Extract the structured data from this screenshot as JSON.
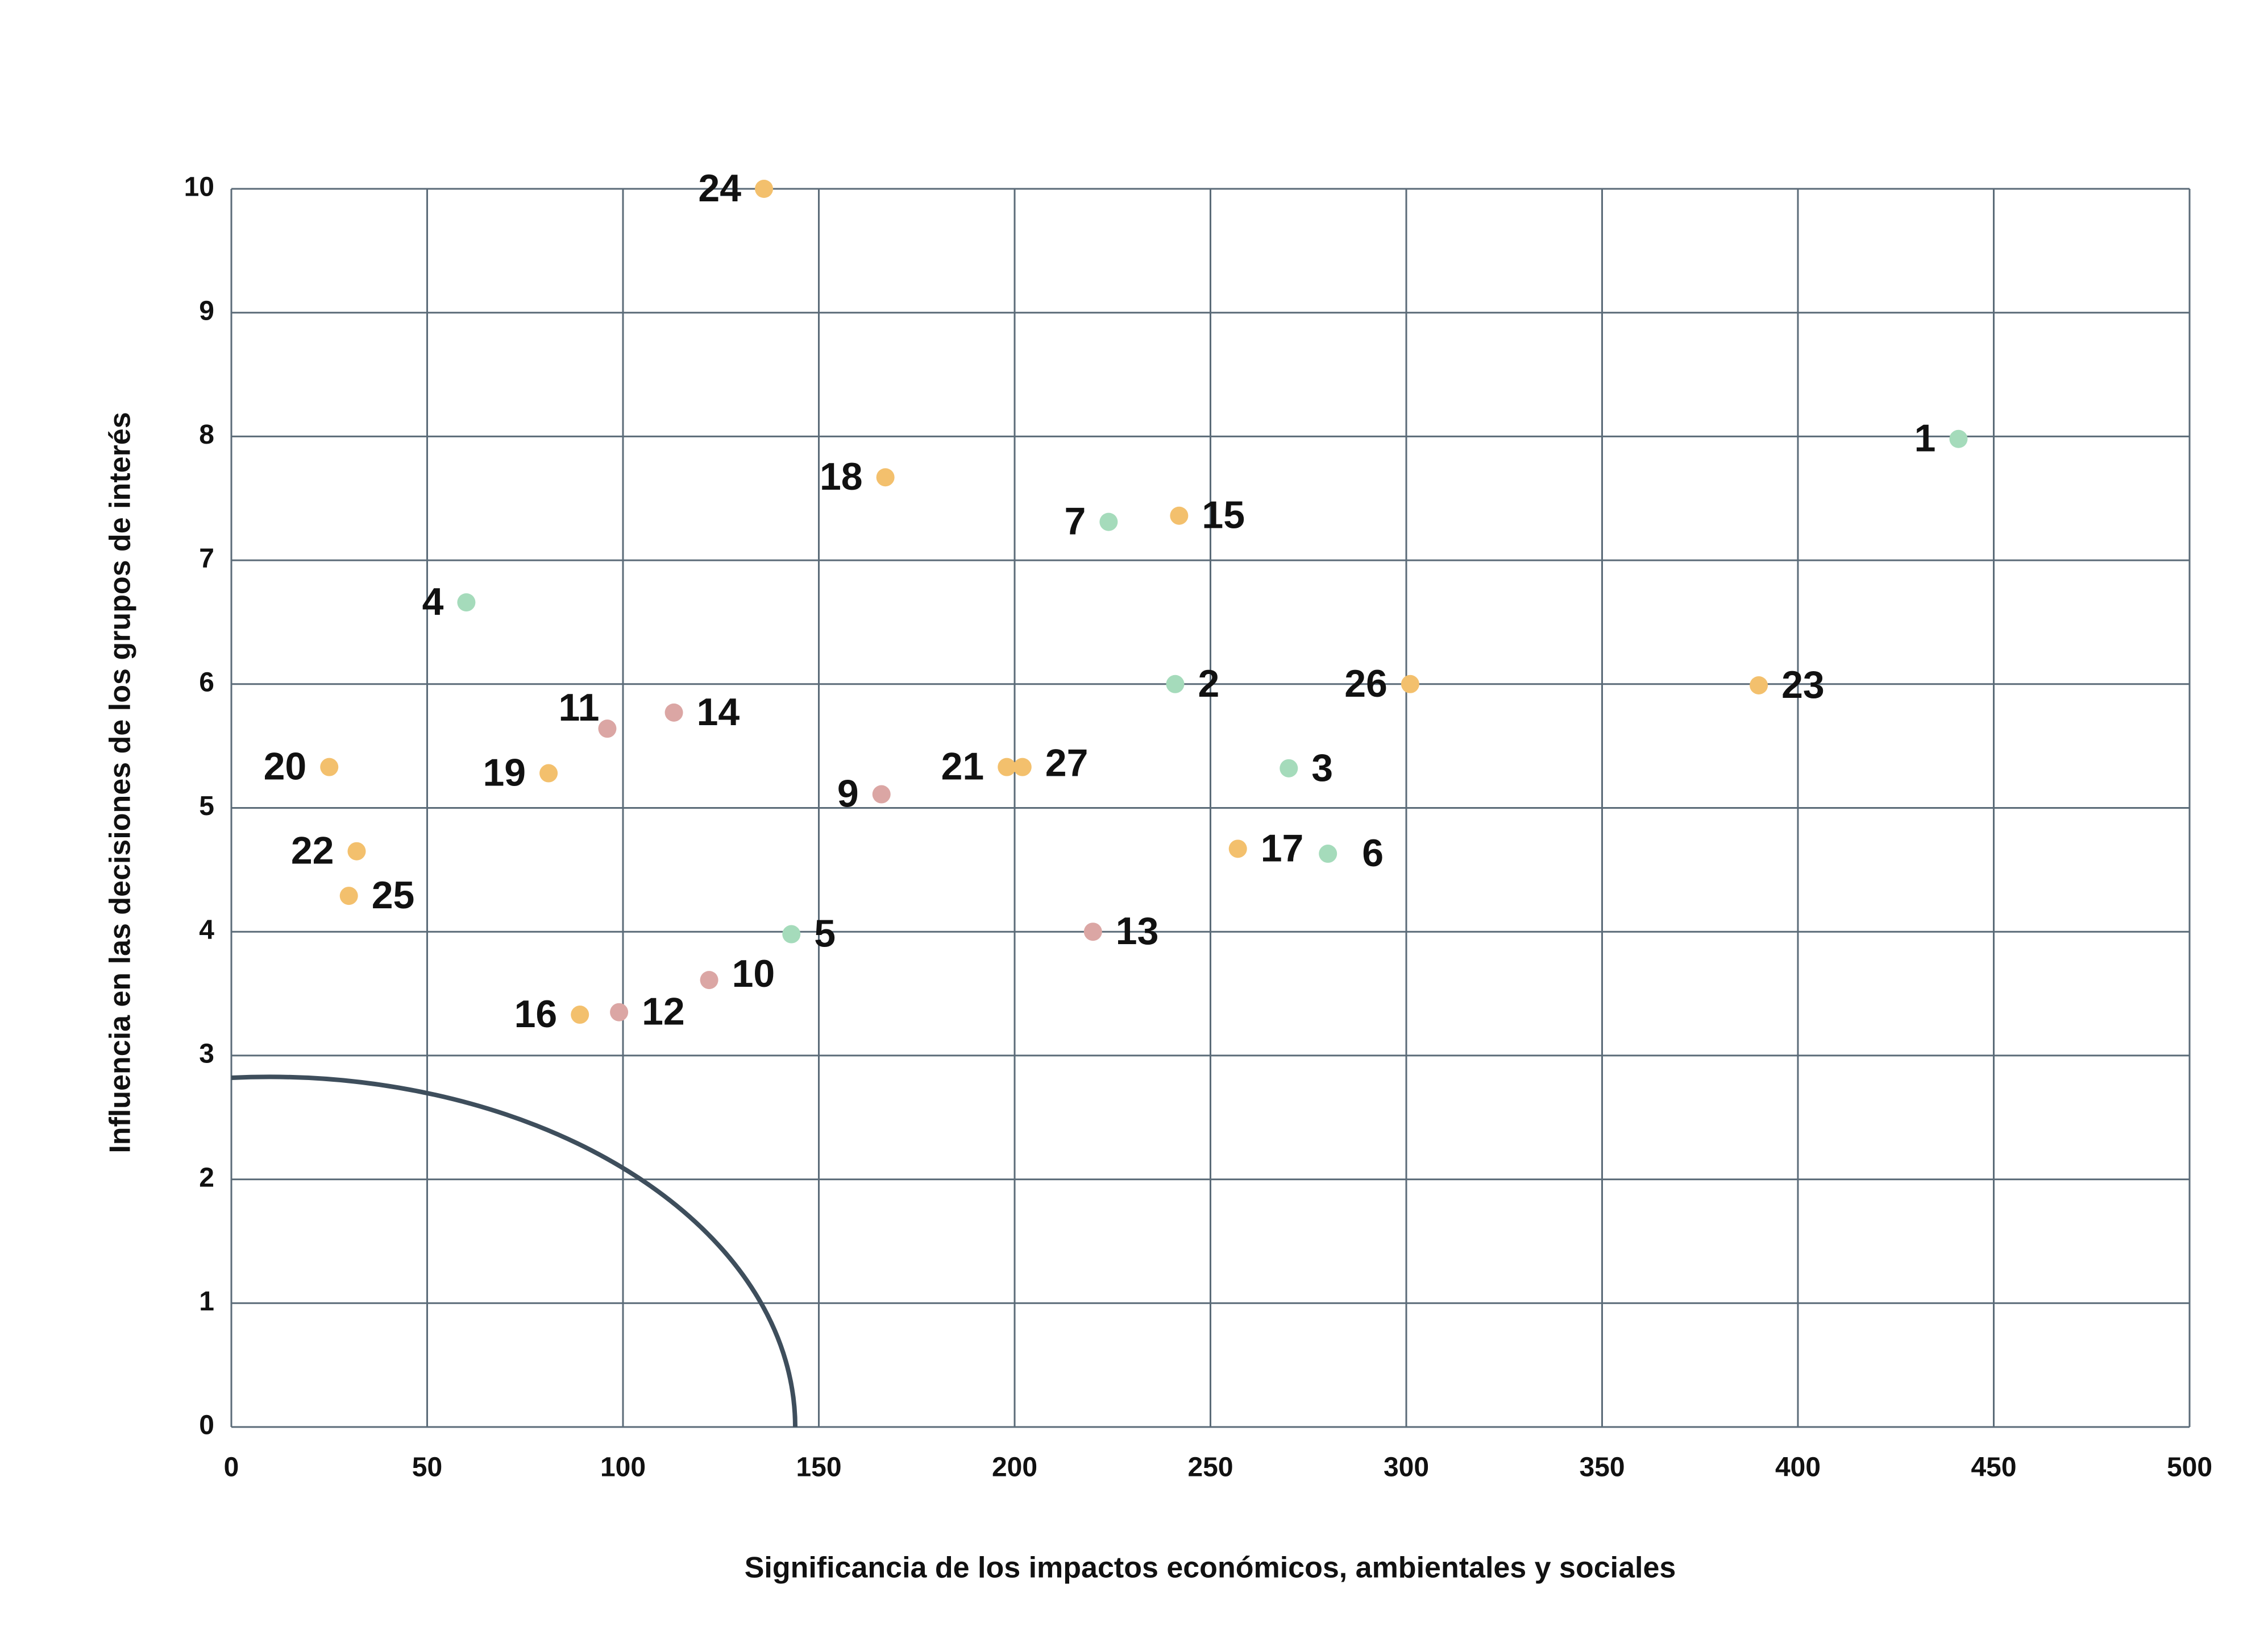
{
  "chart_data": {
    "type": "scatter",
    "x_label": "Significancia de los impactos económicos, ambientales y sociales",
    "y_label": "Influencia en las decisiones de los grupos de interés",
    "xlim": [
      0,
      500
    ],
    "ylim": [
      0,
      10
    ],
    "xticks": [
      0,
      50,
      100,
      150,
      200,
      250,
      300,
      350,
      400,
      450,
      500
    ],
    "yticks": [
      0,
      1,
      2,
      3,
      4,
      5,
      6,
      7,
      8,
      9,
      10
    ],
    "grid": true,
    "series": [
      {
        "color": "#a5dbbb",
        "labels": [
          "1",
          "2",
          "3",
          "4",
          "5",
          "6",
          "7"
        ],
        "x": [
          441,
          241,
          270,
          60,
          143,
          280,
          224
        ],
        "values": [
          7.98,
          6.0,
          5.32,
          6.66,
          3.98,
          4.63,
          7.31
        ]
      },
      {
        "color": "#dba6a4",
        "labels": [
          "9",
          "10",
          "11",
          "12",
          "13",
          "14"
        ],
        "x": [
          166,
          122,
          96,
          99,
          220,
          113
        ],
        "values": [
          5.11,
          3.61,
          5.64,
          3.35,
          4.0,
          5.77
        ]
      },
      {
        "color": "#f3c06d",
        "labels": [
          "15",
          "16",
          "17",
          "18",
          "19",
          "20",
          "21",
          "22",
          "23",
          "24",
          "25",
          "26",
          "27"
        ],
        "x": [
          242,
          89,
          257,
          167,
          81,
          25,
          198,
          32,
          390,
          136,
          30,
          301,
          202
        ],
        "values": [
          7.36,
          3.33,
          4.67,
          7.67,
          5.28,
          5.33,
          5.33,
          4.65,
          5.99,
          10,
          4.29,
          6.0,
          5.33
        ]
      }
    ]
  }
}
